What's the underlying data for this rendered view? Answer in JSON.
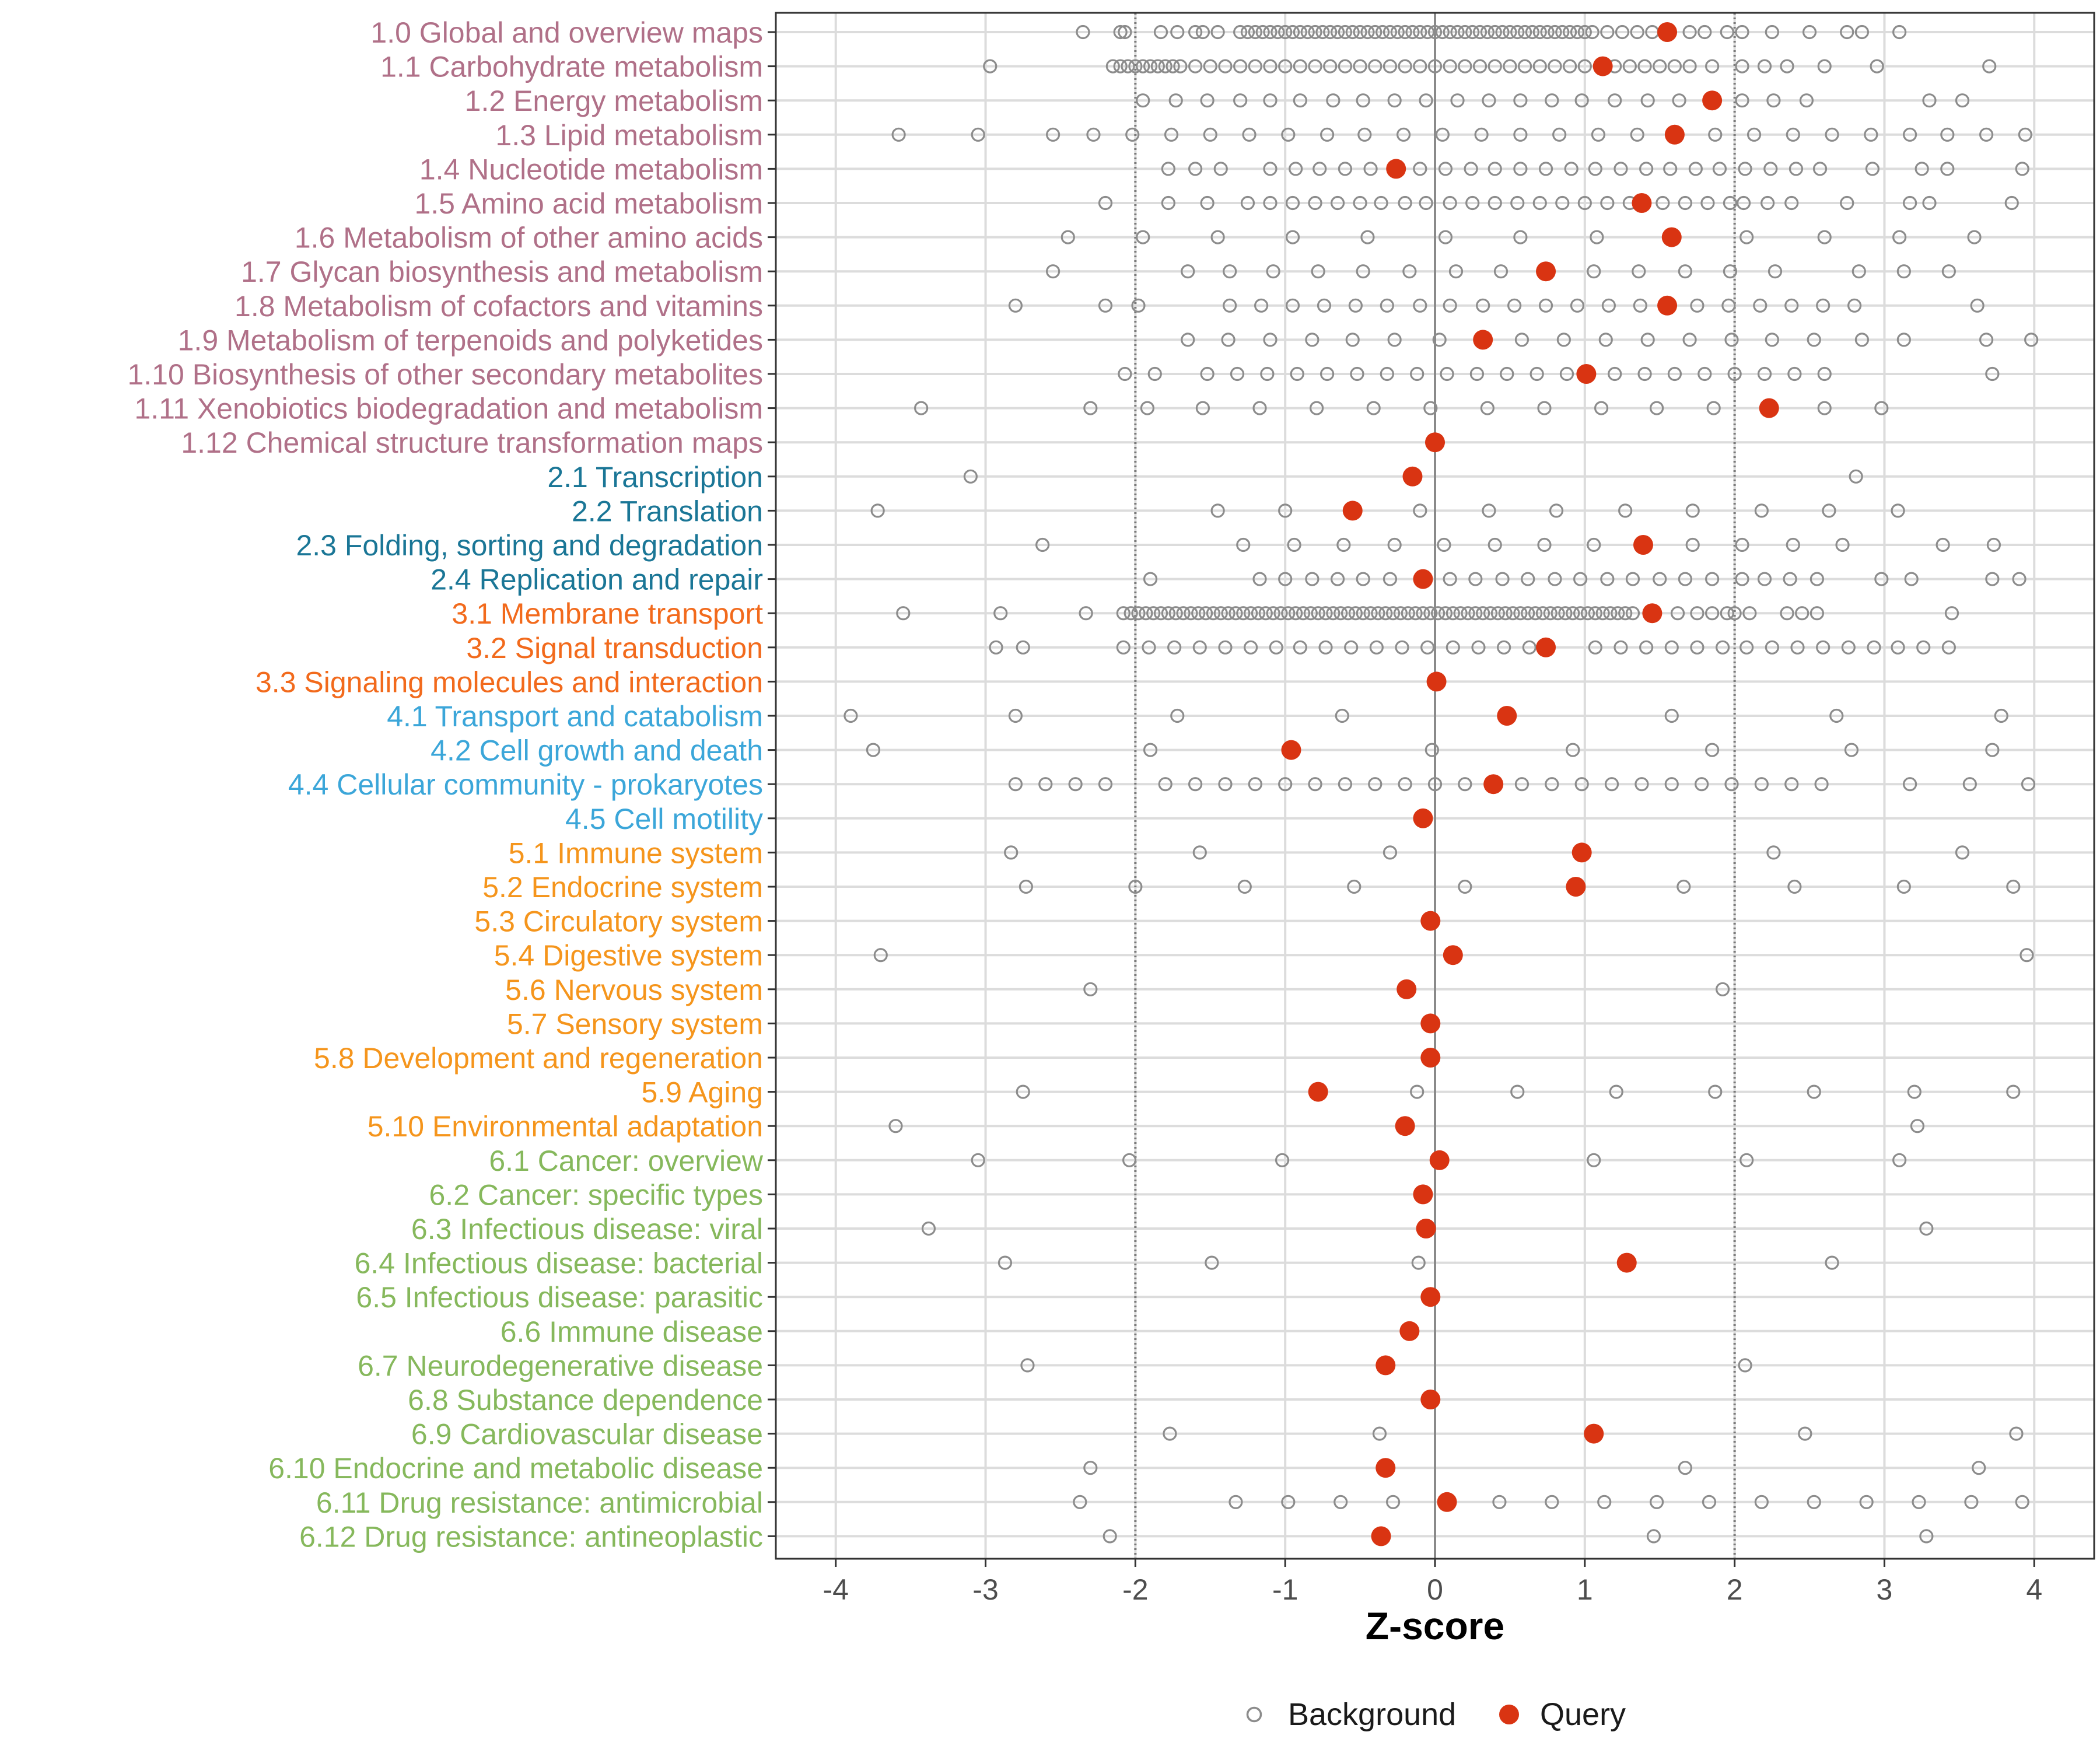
{
  "chart_data": {
    "type": "scatter",
    "title": "",
    "xlabel": "Z-score",
    "ylabel": "",
    "xlim": [
      -4.4,
      4.4
    ],
    "x_ticks": [
      -4,
      -3,
      -2,
      -1,
      0,
      1,
      2,
      3,
      4
    ],
    "x_tick_labels": [
      "-4",
      "-3",
      "-2",
      "-1",
      "0",
      "1",
      "2",
      "3",
      "4"
    ],
    "reference_lines": [
      {
        "x": -2,
        "style": "dotted"
      },
      {
        "x": 0,
        "style": "solid"
      },
      {
        "x": 2,
        "style": "dotted"
      }
    ],
    "legend": {
      "position": "bottom",
      "entries": [
        {
          "label": "Background",
          "marker": "open-circle",
          "color": "#8c8c8c"
        },
        {
          "label": "Query",
          "marker": "filled-circle",
          "color": "#d93412"
        }
      ]
    },
    "group_colors": {
      "1": "#b07088",
      "2": "#1a7696",
      "3": "#f26a1c",
      "4": "#3ba6d9",
      "5": "#f5951c",
      "6": "#86b85c"
    },
    "categories": [
      {
        "label": "1.0 Global and overview maps",
        "group": "1",
        "query": 1.55,
        "background": [
          -2.35,
          -2.1,
          -2.07,
          -1.83,
          -1.72,
          -1.6,
          -1.55,
          -1.45,
          -1.3,
          -1.25,
          -1.2,
          -1.15,
          -1.1,
          -1.05,
          -1.0,
          -0.95,
          -0.9,
          -0.85,
          -0.8,
          -0.75,
          -0.7,
          -0.65,
          -0.6,
          -0.55,
          -0.5,
          -0.45,
          -0.4,
          -0.35,
          -0.3,
          -0.25,
          -0.2,
          -0.15,
          -0.1,
          -0.05,
          0.0,
          0.05,
          0.1,
          0.15,
          0.2,
          0.25,
          0.3,
          0.35,
          0.4,
          0.45,
          0.5,
          0.55,
          0.6,
          0.65,
          0.7,
          0.75,
          0.8,
          0.85,
          0.9,
          0.95,
          1.0,
          1.05,
          1.15,
          1.25,
          1.35,
          1.45,
          1.7,
          1.8,
          1.95,
          2.05,
          2.25,
          2.5,
          2.75,
          2.85,
          3.1
        ]
      },
      {
        "label": "1.1 Carbohydrate metabolism",
        "group": "1",
        "query": 1.12,
        "background": [
          -2.97,
          -2.15,
          -2.1,
          -2.05,
          -2.0,
          -1.95,
          -1.9,
          -1.85,
          -1.8,
          -1.75,
          -1.7,
          -1.6,
          -1.5,
          -1.4,
          -1.3,
          -1.2,
          -1.1,
          -1.0,
          -0.9,
          -0.8,
          -0.7,
          -0.6,
          -0.5,
          -0.4,
          -0.3,
          -0.2,
          -0.1,
          0.0,
          0.1,
          0.2,
          0.3,
          0.4,
          0.5,
          0.6,
          0.7,
          0.8,
          0.9,
          1.0,
          1.2,
          1.3,
          1.4,
          1.5,
          1.6,
          1.7,
          1.85,
          2.05,
          2.2,
          2.35,
          2.6,
          2.95,
          3.7
        ]
      },
      {
        "label": "1.2 Energy metabolism",
        "group": "1",
        "query": 1.85,
        "background": [
          -1.95,
          -1.73,
          -1.52,
          -1.3,
          -1.1,
          -0.9,
          -0.68,
          -0.48,
          -0.27,
          -0.06,
          0.15,
          0.36,
          0.57,
          0.78,
          0.98,
          1.2,
          1.42,
          1.63,
          2.05,
          2.26,
          2.48,
          3.3,
          3.52
        ]
      },
      {
        "label": "1.3 Lipid metabolism",
        "group": "1",
        "query": 1.6,
        "background": [
          -3.58,
          -3.05,
          -2.55,
          -2.28,
          -2.02,
          -1.76,
          -1.5,
          -1.24,
          -0.98,
          -0.72,
          -0.47,
          -0.21,
          0.05,
          0.31,
          0.57,
          0.83,
          1.09,
          1.35,
          1.87,
          2.13,
          2.39,
          2.65,
          2.91,
          3.17,
          3.42,
          3.68,
          3.94
        ]
      },
      {
        "label": "1.4 Nucleotide metabolism",
        "group": "1",
        "query": -0.26,
        "background": [
          -1.78,
          -1.6,
          -1.43,
          -1.1,
          -0.93,
          -0.77,
          -0.6,
          -0.43,
          -0.1,
          0.07,
          0.24,
          0.4,
          0.57,
          0.74,
          0.91,
          1.07,
          1.24,
          1.41,
          1.57,
          1.74,
          1.9,
          2.07,
          2.24,
          2.41,
          2.57,
          2.92,
          3.25,
          3.42,
          3.92
        ]
      },
      {
        "label": "1.5 Amino acid metabolism",
        "group": "1",
        "query": 1.38,
        "background": [
          -2.2,
          -1.78,
          -1.52,
          -1.25,
          -1.1,
          -0.95,
          -0.8,
          -0.65,
          -0.5,
          -0.36,
          -0.2,
          -0.06,
          0.1,
          0.25,
          0.4,
          0.55,
          0.7,
          0.85,
          1.0,
          1.15,
          1.3,
          1.52,
          1.67,
          1.82,
          1.97,
          2.06,
          2.22,
          2.38,
          2.75,
          3.17,
          3.3,
          3.85
        ]
      },
      {
        "label": "1.6 Metabolism of other amino acids",
        "group": "1",
        "query": 1.58,
        "background": [
          -2.45,
          -1.95,
          -1.45,
          -0.95,
          -0.45,
          0.07,
          0.57,
          1.08,
          2.08,
          2.6,
          3.1,
          3.6
        ]
      },
      {
        "label": "1.7 Glycan biosynthesis and metabolism",
        "group": "1",
        "query": 0.74,
        "background": [
          -2.55,
          -1.65,
          -1.37,
          -1.08,
          -0.78,
          -0.48,
          -0.17,
          0.14,
          0.44,
          1.06,
          1.36,
          1.67,
          1.97,
          2.27,
          2.83,
          3.13,
          3.43
        ]
      },
      {
        "label": "1.8 Metabolism of cofactors and vitamins",
        "group": "1",
        "query": 1.55,
        "background": [
          -2.8,
          -2.2,
          -1.98,
          -1.37,
          -1.16,
          -0.95,
          -0.74,
          -0.53,
          -0.32,
          -0.1,
          0.1,
          0.32,
          0.53,
          0.74,
          0.95,
          1.16,
          1.37,
          1.75,
          1.96,
          2.17,
          2.38,
          2.59,
          2.8,
          3.62
        ]
      },
      {
        "label": "1.9 Metabolism of terpenoids and polyketides",
        "group": "1",
        "query": 0.32,
        "background": [
          -1.65,
          -1.38,
          -1.1,
          -0.82,
          -0.55,
          -0.27,
          0.03,
          0.58,
          0.86,
          1.14,
          1.42,
          1.7,
          1.98,
          2.25,
          2.53,
          2.85,
          3.13,
          3.68,
          3.98
        ]
      },
      {
        "label": "1.10 Biosynthesis of other secondary metabolites",
        "group": "1",
        "query": 1.01,
        "background": [
          -2.07,
          -1.87,
          -1.52,
          -1.32,
          -1.12,
          -0.92,
          -0.72,
          -0.52,
          -0.32,
          -0.12,
          0.08,
          0.28,
          0.48,
          0.68,
          0.88,
          1.2,
          1.4,
          1.6,
          1.8,
          2.0,
          2.2,
          2.4,
          2.6,
          3.72
        ]
      },
      {
        "label": "1.11 Xenobiotics biodegradation and metabolism",
        "group": "1",
        "query": 2.23,
        "background": [
          -3.43,
          -2.3,
          -1.92,
          -1.55,
          -1.17,
          -0.79,
          -0.41,
          -0.03,
          0.35,
          0.73,
          1.11,
          1.48,
          1.86,
          2.6,
          2.98
        ]
      },
      {
        "label": "1.12 Chemical structure transformation maps",
        "group": "1",
        "query": 0.0,
        "background": []
      },
      {
        "label": "2.1 Transcription",
        "group": "2",
        "query": -0.15,
        "background": [
          -3.1,
          2.81
        ]
      },
      {
        "label": "2.2 Translation",
        "group": "2",
        "query": -0.55,
        "background": [
          -3.72,
          -1.45,
          -1.0,
          -0.1,
          0.36,
          0.81,
          1.27,
          1.72,
          2.18,
          2.63,
          3.09
        ]
      },
      {
        "label": "2.3 Folding, sorting and degradation",
        "group": "2",
        "query": 1.39,
        "background": [
          -2.62,
          -1.28,
          -0.94,
          -0.61,
          -0.27,
          0.06,
          0.4,
          0.73,
          1.06,
          1.72,
          2.05,
          2.39,
          2.72,
          3.39,
          3.73
        ]
      },
      {
        "label": "2.4 Replication and repair",
        "group": "2",
        "query": -0.08,
        "background": [
          -1.9,
          -1.17,
          -1.0,
          -0.82,
          -0.65,
          -0.48,
          -0.3,
          0.1,
          0.27,
          0.45,
          0.62,
          0.8,
          0.97,
          1.15,
          1.32,
          1.5,
          1.67,
          1.85,
          2.05,
          2.2,
          2.37,
          2.55,
          2.98,
          3.18,
          3.72,
          3.9
        ]
      },
      {
        "label": "3.1 Membrane transport",
        "group": "3",
        "query": 1.45,
        "background": [
          -3.55,
          -2.9,
          -2.33,
          -2.08,
          -2.03,
          -1.98,
          -1.93,
          -1.88,
          -1.83,
          -1.78,
          -1.73,
          -1.68,
          -1.63,
          -1.58,
          -1.53,
          -1.48,
          -1.43,
          -1.38,
          -1.33,
          -1.28,
          -1.23,
          -1.18,
          -1.13,
          -1.08,
          -1.03,
          -0.98,
          -0.93,
          -0.88,
          -0.83,
          -0.78,
          -0.73,
          -0.68,
          -0.63,
          -0.58,
          -0.53,
          -0.48,
          -0.43,
          -0.38,
          -0.33,
          -0.28,
          -0.23,
          -0.18,
          -0.13,
          -0.08,
          -0.03,
          0.02,
          0.07,
          0.12,
          0.17,
          0.22,
          0.27,
          0.32,
          0.37,
          0.42,
          0.47,
          0.52,
          0.57,
          0.62,
          0.67,
          0.72,
          0.77,
          0.82,
          0.87,
          0.92,
          0.97,
          1.02,
          1.07,
          1.12,
          1.17,
          1.22,
          1.27,
          1.32,
          1.62,
          1.75,
          1.85,
          1.95,
          2.0,
          2.1,
          2.35,
          2.45,
          2.55,
          3.45
        ]
      },
      {
        "label": "3.2 Signal transduction",
        "group": "3",
        "query": 0.74,
        "background": [
          -2.93,
          -2.75,
          -2.08,
          -1.91,
          -1.74,
          -1.57,
          -1.4,
          -1.23,
          -1.06,
          -0.9,
          -0.73,
          -0.56,
          -0.39,
          -0.22,
          -0.05,
          0.12,
          0.29,
          0.46,
          0.63,
          1.07,
          1.24,
          1.41,
          1.58,
          1.75,
          1.92,
          2.08,
          2.25,
          2.42,
          2.59,
          2.76,
          2.93,
          3.09,
          3.26,
          3.43
        ]
      },
      {
        "label": "3.3 Signaling molecules and interaction",
        "group": "3",
        "query": 0.01,
        "background": []
      },
      {
        "label": "4.1 Transport and catabolism",
        "group": "4",
        "query": 0.48,
        "background": [
          -3.9,
          -2.8,
          -1.72,
          -0.62,
          1.58,
          2.68,
          3.78
        ]
      },
      {
        "label": "4.2 Cell growth and death",
        "group": "4",
        "query": -0.96,
        "background": [
          -3.75,
          -1.9,
          -0.02,
          0.92,
          1.85,
          2.78,
          3.72
        ]
      },
      {
        "label": "4.4 Cellular community - prokaryotes",
        "group": "4",
        "query": 0.39,
        "background": [
          -2.8,
          -2.6,
          -2.4,
          -2.2,
          -1.8,
          -1.6,
          -1.4,
          -1.2,
          -1.0,
          -0.8,
          -0.6,
          -0.4,
          -0.2,
          0.0,
          0.2,
          0.58,
          0.78,
          0.98,
          1.18,
          1.38,
          1.58,
          1.78,
          1.98,
          2.18,
          2.38,
          2.58,
          3.17,
          3.57,
          3.96
        ]
      },
      {
        "label": "4.5 Cell motility",
        "group": "4",
        "query": -0.08,
        "background": []
      },
      {
        "label": "5.1 Immune system",
        "group": "5",
        "query": 0.98,
        "background": [
          -2.83,
          -1.57,
          -0.3,
          2.26,
          3.52
        ]
      },
      {
        "label": "5.2 Endocrine system",
        "group": "5",
        "query": 0.94,
        "background": [
          -2.73,
          -2.0,
          -1.27,
          -0.54,
          0.2,
          1.66,
          2.4,
          3.13,
          3.86
        ]
      },
      {
        "label": "5.3 Circulatory system",
        "group": "5",
        "query": -0.03,
        "background": []
      },
      {
        "label": "5.4 Digestive system",
        "group": "5",
        "query": 0.12,
        "background": [
          -3.7,
          3.95
        ]
      },
      {
        "label": "5.6 Nervous system",
        "group": "5",
        "query": -0.19,
        "background": [
          -2.3,
          1.92
        ]
      },
      {
        "label": "5.7 Sensory system",
        "group": "5",
        "query": -0.03,
        "background": []
      },
      {
        "label": "5.8 Development and regeneration",
        "group": "5",
        "query": -0.03,
        "background": []
      },
      {
        "label": "5.9 Aging",
        "group": "5",
        "query": -0.78,
        "background": [
          -2.75,
          -0.12,
          0.55,
          1.21,
          1.87,
          2.53,
          3.2,
          3.86
        ]
      },
      {
        "label": "5.10 Environmental adaptation",
        "group": "5",
        "query": -0.2,
        "background": [
          -3.6,
          3.22
        ]
      },
      {
        "label": "6.1 Cancer: overview",
        "group": "6",
        "query": 0.03,
        "background": [
          -3.05,
          -2.04,
          -1.02,
          1.06,
          2.08,
          3.1
        ]
      },
      {
        "label": "6.2 Cancer: specific types",
        "group": "6",
        "query": -0.08,
        "background": []
      },
      {
        "label": "6.3 Infectious disease: viral",
        "group": "6",
        "query": -0.06,
        "background": [
          -3.38,
          3.28
        ]
      },
      {
        "label": "6.4 Infectious disease: bacterial",
        "group": "6",
        "query": 1.28,
        "background": [
          -2.87,
          -1.49,
          -0.11,
          2.65
        ]
      },
      {
        "label": "6.5 Infectious disease: parasitic",
        "group": "6",
        "query": -0.03,
        "background": []
      },
      {
        "label": "6.6 Immune disease",
        "group": "6",
        "query": -0.17,
        "background": []
      },
      {
        "label": "6.7 Neurodegenerative disease",
        "group": "6",
        "query": -0.33,
        "background": [
          -2.72,
          2.07
        ]
      },
      {
        "label": "6.8 Substance dependence",
        "group": "6",
        "query": -0.03,
        "background": []
      },
      {
        "label": "6.9 Cardiovascular disease",
        "group": "6",
        "query": 1.06,
        "background": [
          -1.77,
          -0.37,
          2.47,
          3.88
        ]
      },
      {
        "label": "6.10 Endocrine and metabolic disease",
        "group": "6",
        "query": -0.33,
        "background": [
          -2.3,
          1.67,
          3.63
        ]
      },
      {
        "label": "6.11 Drug resistance: antimicrobial",
        "group": "6",
        "query": 0.08,
        "background": [
          -2.37,
          -1.33,
          -0.98,
          -0.63,
          -0.28,
          0.43,
          0.78,
          1.13,
          1.48,
          1.83,
          2.18,
          2.53,
          2.88,
          3.23,
          3.58,
          3.92
        ]
      },
      {
        "label": "6.12 Drug resistance: antineoplastic",
        "group": "6",
        "query": -0.36,
        "background": [
          -2.17,
          1.46,
          3.28
        ]
      }
    ]
  }
}
